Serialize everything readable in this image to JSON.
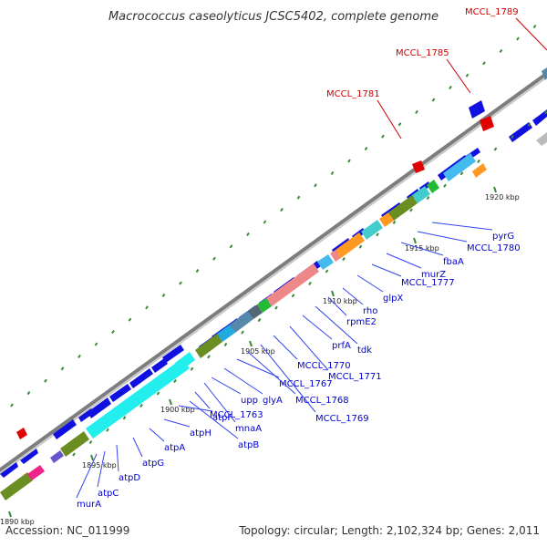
{
  "title": "Macrococcus caseolyticus JCSC5402, complete genome",
  "footer": {
    "accession": "Accession: NC_011999",
    "summary": "Topology: circular; Length: 2,102,324 bp; Genes: 2,011"
  },
  "ticks": [
    "1890 kbp",
    "1895 kbp",
    "1900 kbp",
    "1905 kbp",
    "1910 kbp",
    "1915 kbp",
    "1920 kbp"
  ],
  "callouts": [
    "MCCL_1781",
    "MCCL_1785",
    "MCCL_1789"
  ],
  "genes": [
    "murA",
    "atpC",
    "atpD",
    "atpG",
    "atpA",
    "atpH",
    "atpF",
    "atpB",
    "MCCL_1763",
    "mnaA",
    "upp",
    "glyA",
    "MCCL_1767",
    "MCCL_1768",
    "MCCL_1769",
    "MCCL_1770",
    "MCCL_1771",
    "prfA",
    "tdk",
    "rpmE2",
    "rho",
    "glpX",
    "MCCL_1777",
    "murZ",
    "fbaA",
    "MCCL_1780",
    "pyrG"
  ],
  "colors": {
    "forward_gene": "#1010e0",
    "atp_operon": "#22eeee",
    "rrna_like": "#ee8888",
    "olive": "#6b8e23",
    "orange": "#ff9922",
    "teal": "#44cccc",
    "green": "#22bb33",
    "steel": "#5588aa",
    "magenta": "#ee2288",
    "backbone": "#8a8a8a",
    "gene_label": "#0000cc",
    "callout": "#cc0000",
    "marker": "#e00000"
  }
}
